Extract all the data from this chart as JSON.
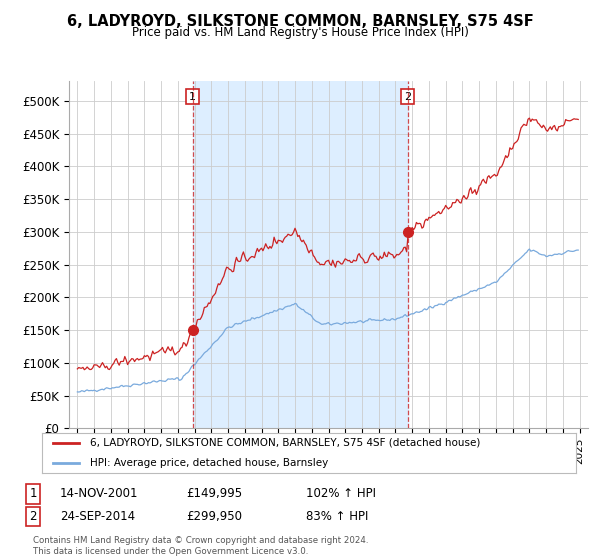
{
  "title": "6, LADYROYD, SILKSTONE COMMON, BARNSLEY, S75 4SF",
  "subtitle": "Price paid vs. HM Land Registry's House Price Index (HPI)",
  "legend_line1": "6, LADYROYD, SILKSTONE COMMON, BARNSLEY, S75 4SF (detached house)",
  "legend_line2": "HPI: Average price, detached house, Barnsley",
  "sale1_label": "1",
  "sale1_date": "14-NOV-2001",
  "sale1_price": "£149,995",
  "sale1_hpi": "102% ↑ HPI",
  "sale2_label": "2",
  "sale2_date": "24-SEP-2014",
  "sale2_price": "£299,950",
  "sale2_hpi": "83% ↑ HPI",
  "footer": "Contains HM Land Registry data © Crown copyright and database right 2024.\nThis data is licensed under the Open Government Licence v3.0.",
  "ylim": [
    0,
    530000
  ],
  "yticks": [
    0,
    50000,
    100000,
    150000,
    200000,
    250000,
    300000,
    350000,
    400000,
    450000,
    500000
  ],
  "property_color": "#cc2222",
  "hpi_color": "#7aaadd",
  "shade_color": "#ddeeff",
  "sale1_x": 2001.88,
  "sale2_x": 2014.72,
  "vline_color": "#cc2222",
  "background_color": "#ffffff",
  "grid_color": "#cccccc"
}
